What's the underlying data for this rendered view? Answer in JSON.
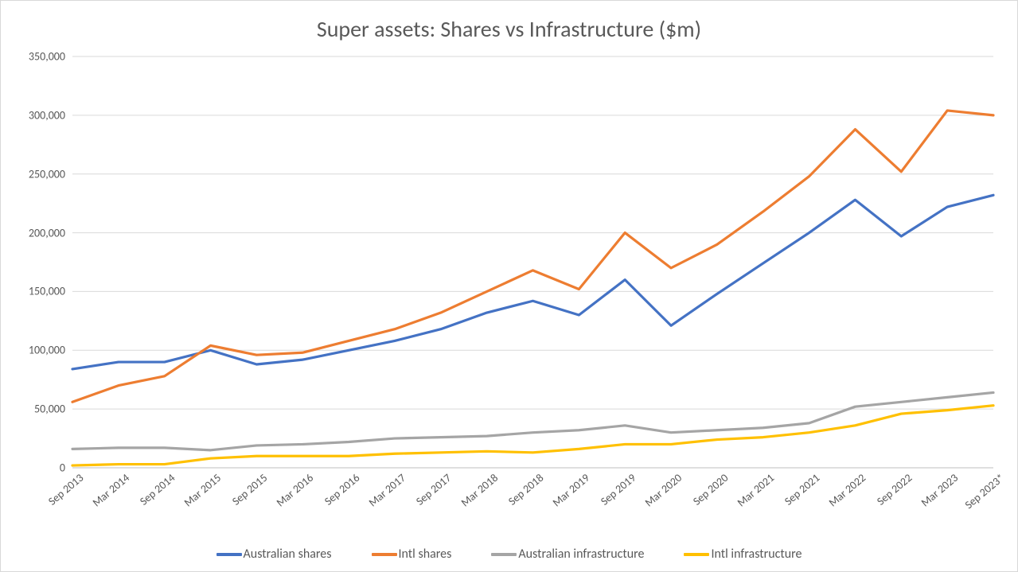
{
  "chart": {
    "type": "line",
    "title": "Super assets: Shares vs Infrastructure ($m)",
    "title_fontsize": 28,
    "title_color": "#595959",
    "background_color": "#ffffff",
    "border_color": "#d9d9d9",
    "grid_color": "#d9d9d9",
    "axis_label_color": "#595959",
    "axis_label_fontsize": 14,
    "line_width": 3.2,
    "ylim": [
      0,
      350000
    ],
    "ytick_step": 50000,
    "yticks": [
      "0",
      "50,000",
      "100,000",
      "150,000",
      "200,000",
      "250,000",
      "300,000",
      "350,000"
    ],
    "categories": [
      "Sep 2013",
      "Mar 2014",
      "Sep 2014",
      "Mar 2015",
      "Sep 2015",
      "Mar 2016",
      "Sep 2016",
      "Mar 2017",
      "Sep 2017",
      "Mar 2018",
      "Sep 2018",
      "Mar 2019",
      "Sep 2019",
      "Mar 2020",
      "Sep 2020",
      "Mar 2021",
      "Sep 2021",
      "Mar 2022",
      "Sep 2022",
      "Mar 2023",
      "Sep 2023*"
    ],
    "x_label_rotation_deg": -40,
    "series": [
      {
        "name": "Australian shares",
        "color": "#4472c4",
        "values": [
          84000,
          90000,
          90000,
          100000,
          88000,
          92000,
          100000,
          108000,
          118000,
          132000,
          142000,
          130000,
          160000,
          121000,
          148000,
          174000,
          200000,
          228000,
          197000,
          222000,
          232000
        ]
      },
      {
        "name": "Intl shares",
        "color": "#ed7d31",
        "values": [
          56000,
          70000,
          78000,
          104000,
          96000,
          98000,
          108000,
          118000,
          132000,
          150000,
          168000,
          152000,
          200000,
          170000,
          190000,
          218000,
          248000,
          288000,
          252000,
          304000,
          300000
        ]
      },
      {
        "name": "Australian infrastructure",
        "color": "#a5a5a5",
        "values": [
          16000,
          17000,
          17000,
          15000,
          19000,
          20000,
          22000,
          25000,
          26000,
          27000,
          30000,
          32000,
          36000,
          30000,
          32000,
          34000,
          38000,
          52000,
          56000,
          60000,
          64000
        ]
      },
      {
        "name": "Intl infrastructure",
        "color": "#ffc000",
        "values": [
          2000,
          3000,
          3000,
          8000,
          10000,
          10000,
          10000,
          12000,
          13000,
          14000,
          13000,
          16000,
          20000,
          20000,
          24000,
          26000,
          30000,
          36000,
          46000,
          49000,
          53000
        ]
      }
    ],
    "legend": {
      "position": "bottom",
      "items": [
        "Australian shares",
        "Intl shares",
        "Australian infrastructure",
        "Intl infrastructure"
      ]
    }
  }
}
